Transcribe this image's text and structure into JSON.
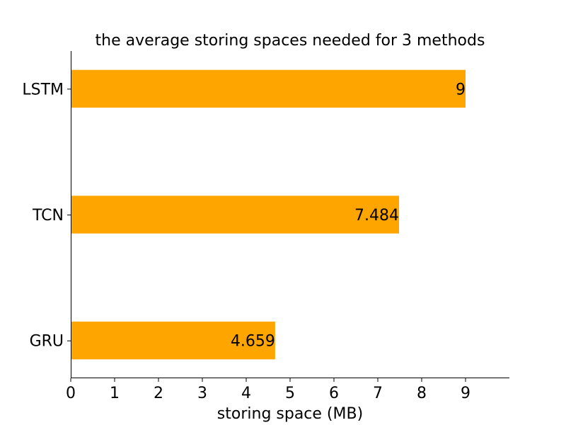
{
  "chart_data": {
    "type": "bar",
    "orientation": "horizontal",
    "title": "the average storing spaces needed for 3 methods",
    "xlabel": "storing space (MB)",
    "ylabel": "",
    "categories": [
      "GRU",
      "TCN",
      "LSTM"
    ],
    "values": [
      4.659,
      7.484,
      9
    ],
    "data_labels": [
      "4.659",
      "7.484",
      "9"
    ],
    "xlim": [
      0,
      10
    ],
    "xticks": [
      0,
      1,
      2,
      3,
      4,
      5,
      6,
      7,
      8,
      9
    ],
    "xtick_labels": [
      "0",
      "1",
      "2",
      "3",
      "4",
      "5",
      "6",
      "7",
      "8",
      "9"
    ],
    "bar_color": "#ffa500",
    "grid": false,
    "legend": "none"
  }
}
